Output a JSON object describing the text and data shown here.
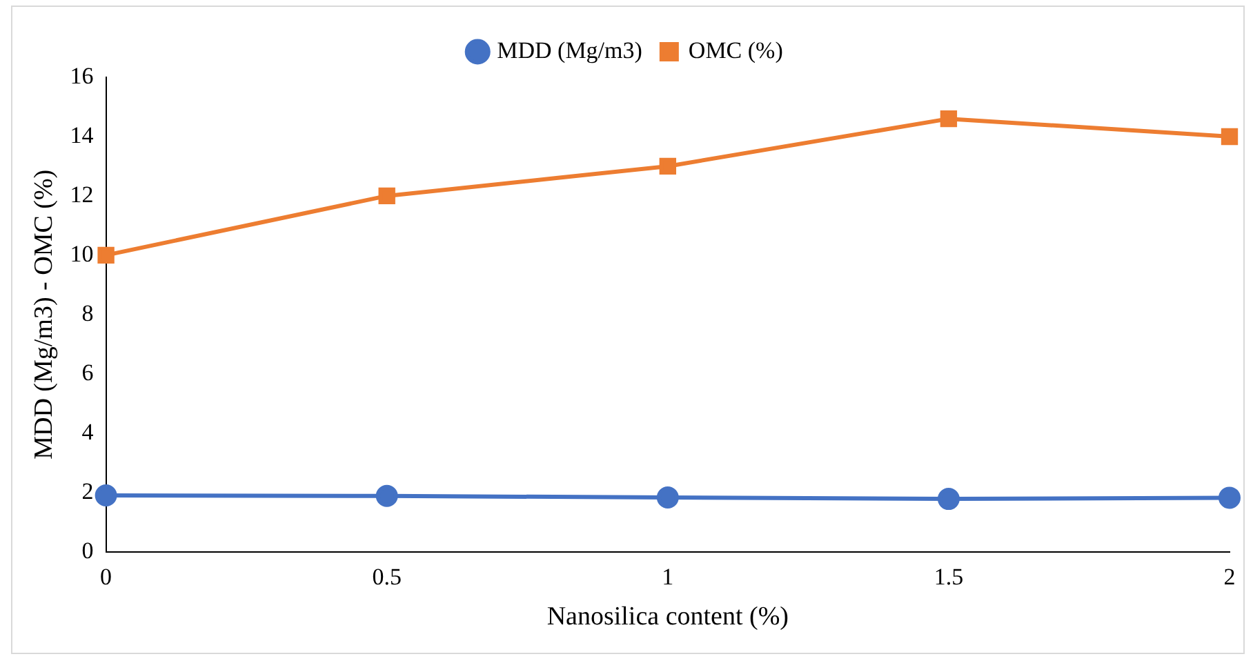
{
  "chart_data": {
    "type": "line",
    "xlabel": "Nanosilica content (%)",
    "ylabel": "MDD (Mg/m3) - OMC (%)",
    "categories": [
      "0",
      "0.5",
      "1",
      "1.5",
      "2"
    ],
    "series": [
      {
        "name": "MDD (Mg/m3)",
        "color": "#4472c4",
        "marker": "circle",
        "values": [
          1.9,
          1.88,
          1.83,
          1.78,
          1.82
        ]
      },
      {
        "name": "OMC (%)",
        "color": "#ed7d31",
        "marker": "square",
        "values": [
          10,
          12,
          13,
          14.6,
          14
        ]
      }
    ],
    "ylim": [
      0,
      16
    ],
    "yticks": [
      0,
      2,
      4,
      6,
      8,
      10,
      12,
      14,
      16
    ],
    "grid": false,
    "legend": "top",
    "line_style": "solid"
  }
}
